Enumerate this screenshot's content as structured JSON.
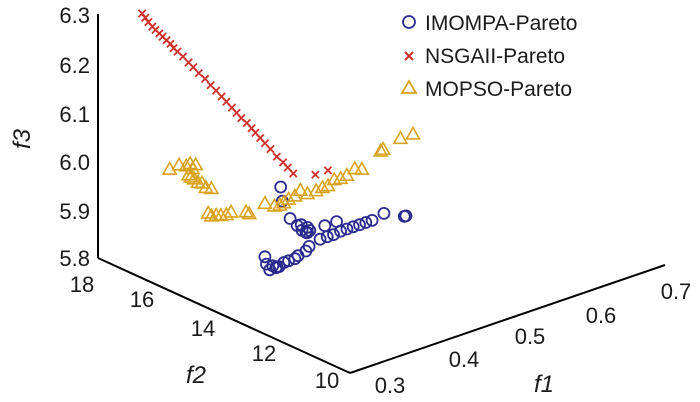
{
  "chart_data": {
    "type": "scatter",
    "projection": "3d",
    "axes": {
      "f1": {
        "label": "f1",
        "ticks": [
          "0.3",
          "0.4",
          "0.5",
          "0.6",
          "0.7"
        ],
        "range": [
          0.3,
          0.7
        ]
      },
      "f2": {
        "label": "f2",
        "ticks": [
          "10",
          "12",
          "14",
          "16",
          "18"
        ],
        "range": [
          10,
          18
        ]
      },
      "f3": {
        "label": "f3",
        "ticks": [
          "5.8",
          "5.9",
          "6.0",
          "6.1",
          "6.2",
          "6.3"
        ],
        "range": [
          5.8,
          6.3
        ]
      }
    },
    "legend": {
      "placement": "top-right"
    },
    "series": [
      {
        "name": "IMOMPA-Pareto",
        "marker": "circle",
        "color": "#2b2b8f",
        "points": [
          [
            0.432,
            15.5,
            5.946
          ],
          [
            0.434,
            15.5,
            5.916
          ],
          [
            0.44,
            15.4,
            5.88
          ],
          [
            0.445,
            15.3,
            5.866
          ],
          [
            0.447,
            15.2,
            5.858
          ],
          [
            0.452,
            15.2,
            5.852
          ],
          [
            0.457,
            15.2,
            5.852
          ],
          [
            0.446,
            15.2,
            5.87
          ],
          [
            0.454,
            15.2,
            5.86
          ],
          [
            0.364,
            14.3,
            5.876
          ],
          [
            0.366,
            14.3,
            5.86
          ],
          [
            0.37,
            14.3,
            5.846
          ],
          [
            0.374,
            14.3,
            5.852
          ],
          [
            0.378,
            14.3,
            5.846
          ],
          [
            0.382,
            14.3,
            5.846
          ],
          [
            0.383,
            14.4,
            5.842
          ],
          [
            0.392,
            14.4,
            5.846
          ],
          [
            0.398,
            14.4,
            5.846
          ],
          [
            0.406,
            14.4,
            5.846
          ],
          [
            0.41,
            14.4,
            5.85
          ],
          [
            0.42,
            14.4,
            5.854
          ],
          [
            0.428,
            14.5,
            5.856
          ],
          [
            0.446,
            14.6,
            5.858
          ],
          [
            0.455,
            14.6,
            5.858
          ],
          [
            0.463,
            14.6,
            5.858
          ],
          [
            0.472,
            14.6,
            5.86
          ],
          [
            0.48,
            14.6,
            5.86
          ],
          [
            0.488,
            14.6,
            5.86
          ],
          [
            0.496,
            14.6,
            5.86
          ],
          [
            0.504,
            14.6,
            5.86
          ],
          [
            0.512,
            14.6,
            5.86
          ],
          [
            0.437,
            14.8,
            5.87
          ],
          [
            0.46,
            14.8,
            5.872
          ],
          [
            0.475,
            14.8,
            5.872
          ],
          [
            0.527,
            14.6,
            5.866
          ],
          [
            0.537,
            14.2,
            5.866
          ],
          [
            0.539,
            14.2,
            5.866
          ],
          [
            0.438,
            14.8,
            5.87
          ]
        ]
      },
      {
        "name": "NSGAII-Pareto",
        "marker": "x",
        "color": "#d0312d",
        "points": [
          [
            0.356,
            18.0,
            6.27
          ],
          [
            0.36,
            18.0,
            6.259
          ],
          [
            0.364,
            18.0,
            6.248
          ],
          [
            0.369,
            18.0,
            6.236
          ],
          [
            0.373,
            18.0,
            6.227
          ],
          [
            0.378,
            18.0,
            6.217
          ],
          [
            0.382,
            18.0,
            6.208
          ],
          [
            0.387,
            18.0,
            6.198
          ],
          [
            0.392,
            18.0,
            6.188
          ],
          [
            0.396,
            18.0,
            6.177
          ],
          [
            0.401,
            18.0,
            6.167
          ],
          [
            0.408,
            18.0,
            6.153
          ],
          [
            0.415,
            18.0,
            6.137
          ],
          [
            0.421,
            18.0,
            6.124
          ],
          [
            0.428,
            18.0,
            6.108
          ],
          [
            0.436,
            18.0,
            6.092
          ],
          [
            0.443,
            18.0,
            6.075
          ],
          [
            0.45,
            18.0,
            6.06
          ],
          [
            0.457,
            18.0,
            6.044
          ],
          [
            0.463,
            18.0,
            6.03
          ],
          [
            0.47,
            18.0,
            6.014
          ],
          [
            0.476,
            18.0,
            6.0
          ],
          [
            0.482,
            18.0,
            5.986
          ],
          [
            0.489,
            18.0,
            5.972
          ],
          [
            0.495,
            18.0,
            5.958
          ],
          [
            0.5,
            18.0,
            5.946
          ],
          [
            0.506,
            18.0,
            5.932
          ],
          [
            0.512,
            18.0,
            5.918
          ],
          [
            0.519,
            18.0,
            5.902
          ],
          [
            0.527,
            18.0,
            5.882
          ],
          [
            0.535,
            18.0,
            5.866
          ],
          [
            0.541,
            18.0,
            5.852
          ],
          [
            0.548,
            18.0,
            5.836
          ],
          [
            0.576,
            18.0,
            5.818
          ],
          [
            0.592,
            18.0,
            5.818
          ]
        ]
      },
      {
        "name": "MOPSO-Pareto",
        "marker": "triangle",
        "color": "#d9a21b",
        "points": [
          [
            0.311,
            16.0,
            6.035
          ],
          [
            0.323,
            16.0,
            6.037
          ],
          [
            0.332,
            16.0,
            6.03
          ],
          [
            0.337,
            16.0,
            6.032
          ],
          [
            0.34,
            16.0,
            6.02
          ],
          [
            0.344,
            16.0,
            6.026
          ],
          [
            0.335,
            16.0,
            6.01
          ],
          [
            0.338,
            16.0,
            6.004
          ],
          [
            0.342,
            16.0,
            5.998
          ],
          [
            0.347,
            16.0,
            5.988
          ],
          [
            0.352,
            16.0,
            5.984
          ],
          [
            0.357,
            16.0,
            5.972
          ],
          [
            0.364,
            16.0,
            5.966
          ],
          [
            0.36,
            16.0,
            5.918
          ],
          [
            0.364,
            16.0,
            5.91
          ],
          [
            0.37,
            16.0,
            5.908
          ],
          [
            0.376,
            16.0,
            5.904
          ],
          [
            0.383,
            16.0,
            5.902
          ],
          [
            0.389,
            16.0,
            5.904
          ],
          [
            0.408,
            16.0,
            5.894
          ],
          [
            0.412,
            16.0,
            5.888
          ],
          [
            0.432,
            16.0,
            5.898
          ],
          [
            0.444,
            16.0,
            5.886
          ],
          [
            0.451,
            16.0,
            5.884
          ],
          [
            0.456,
            16.0,
            5.886
          ],
          [
            0.462,
            16.0,
            5.89
          ],
          [
            0.47,
            16.0,
            5.892
          ],
          [
            0.477,
            16.0,
            5.9
          ],
          [
            0.486,
            16.0,
            5.888
          ],
          [
            0.497,
            16.0,
            5.888
          ],
          [
            0.505,
            16.0,
            5.89
          ],
          [
            0.512,
            16.0,
            5.89
          ],
          [
            0.52,
            16.0,
            5.898
          ],
          [
            0.528,
            16.0,
            5.896
          ],
          [
            0.536,
            16.0,
            5.898
          ],
          [
            0.546,
            16.0,
            5.906
          ],
          [
            0.555,
            16.0,
            5.9
          ],
          [
            0.579,
            16.0,
            5.924
          ],
          [
            0.582,
            16.0,
            5.926
          ],
          [
            0.604,
            16.0,
            5.936
          ],
          [
            0.62,
            16.0,
            5.936
          ]
        ]
      }
    ]
  }
}
